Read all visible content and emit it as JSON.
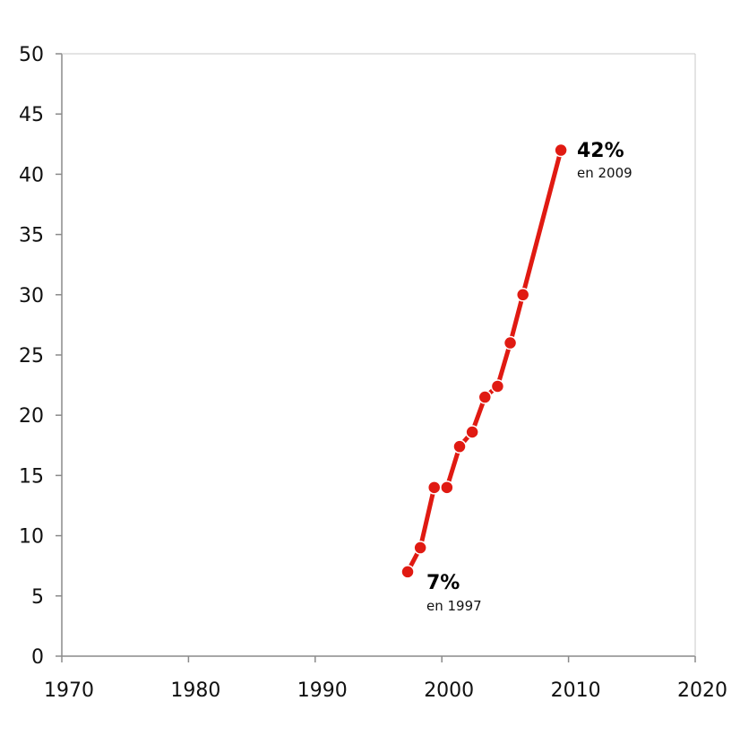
{
  "chart_data": {
    "type": "line",
    "title": "",
    "xlabel": "",
    "ylabel": "",
    "xlim": [
      1970,
      2020
    ],
    "ylim": [
      0,
      50
    ],
    "x_ticks": [
      "1970",
      "1980",
      "1990",
      "2000",
      "2010",
      "2020"
    ],
    "y_ticks": [
      "0",
      "5",
      "10",
      "15",
      "20",
      "25",
      "30",
      "35",
      "40",
      "45",
      "50"
    ],
    "grid": false,
    "legend": "none",
    "series": [
      {
        "color": "#e01a12",
        "x": [
          1997.3,
          1998.3,
          1999.4,
          2000.4,
          2001.4,
          2002.4,
          2003.4,
          2004.4,
          2005.4,
          2006.4,
          2009.4
        ],
        "y": [
          7,
          9,
          14,
          14,
          17.4,
          18.6,
          21.5,
          22.4,
          26,
          30,
          42
        ]
      }
    ],
    "annotations": [
      {
        "value": "7%",
        "sub": "en 1997"
      },
      {
        "value": "42%",
        "sub": "en 2009"
      }
    ]
  }
}
